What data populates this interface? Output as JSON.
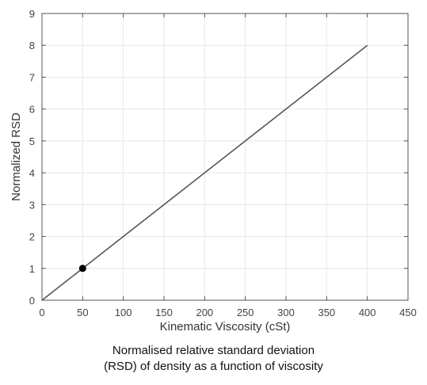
{
  "chart_data": {
    "type": "line",
    "title": "",
    "xlabel": "Kinematic Viscosity (cSt)",
    "ylabel": "Normalized RSD",
    "xlim": [
      0,
      450
    ],
    "ylim": [
      0,
      9
    ],
    "xticks": [
      0,
      50,
      100,
      150,
      200,
      250,
      300,
      350,
      400,
      450
    ],
    "yticks": [
      0,
      1,
      2,
      3,
      4,
      5,
      6,
      7,
      8,
      9
    ],
    "grid": true,
    "series": [
      {
        "x": [
          0,
          400
        ],
        "y": [
          0,
          8
        ],
        "color": "#555555"
      }
    ],
    "highlight_point": {
      "x": 50,
      "y": 1,
      "color": "#000000"
    }
  },
  "caption": {
    "line1": "Normalised relative standard deviation",
    "line2": "(RSD) of density as a function of viscosity"
  }
}
